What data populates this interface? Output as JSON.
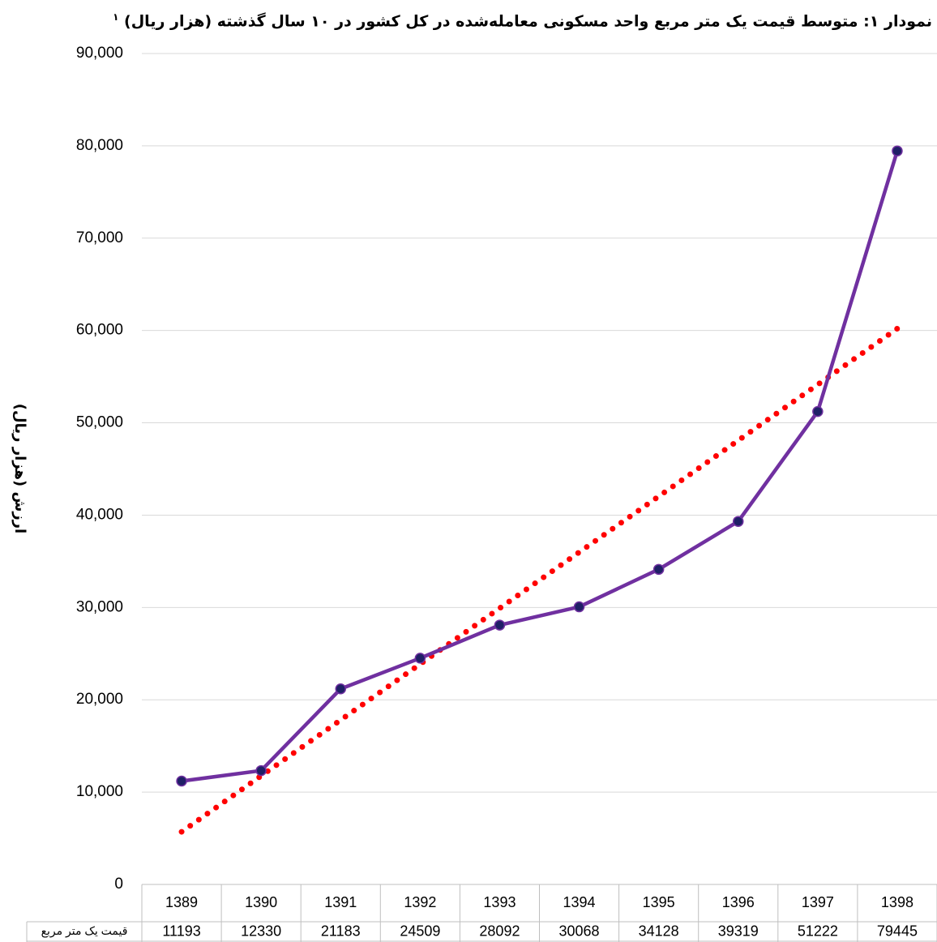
{
  "chart_data": {
    "type": "line",
    "title": "نمودار ۱: متوسط قیمت یک متر مربع واحد مسکونی معامله‌شده در کل کشور در ۱۰ سال گذشته (هزار ریال)",
    "footnote_mark": "۱",
    "y_label": "ارزش (هزار ریال)",
    "categories": [
      "1389",
      "1390",
      "1391",
      "1392",
      "1393",
      "1394",
      "1395",
      "1396",
      "1397",
      "1398"
    ],
    "series": [
      {
        "name": "قیمت یک متر مربع",
        "color": "#7030a0",
        "marker_color": "#1f1f66",
        "values": [
          11193,
          12330,
          21183,
          24509,
          28092,
          30068,
          34128,
          39319,
          51222,
          79445
        ]
      }
    ],
    "trendline": {
      "color": "#ff0000",
      "values": [
        5700,
        11760,
        17810,
        23870,
        29920,
        35980,
        42030,
        48090,
        54140,
        60200
      ]
    },
    "ylim": [
      0,
      90000
    ],
    "yticks": [
      0,
      {
        "value": 10000,
        "label": "10,000"
      },
      {
        "value": 20000,
        "label": "20,000"
      },
      {
        "value": 30000,
        "label": "30,000"
      },
      {
        "value": 40000,
        "label": "40,000"
      },
      {
        "value": 50000,
        "label": "50,000"
      },
      {
        "value": 60000,
        "label": "60,000"
      },
      {
        "value": 70000,
        "label": "70,000"
      },
      {
        "value": 80000,
        "label": "80,000"
      },
      {
        "value": 90000,
        "label": "90,000"
      }
    ],
    "grid": true
  }
}
